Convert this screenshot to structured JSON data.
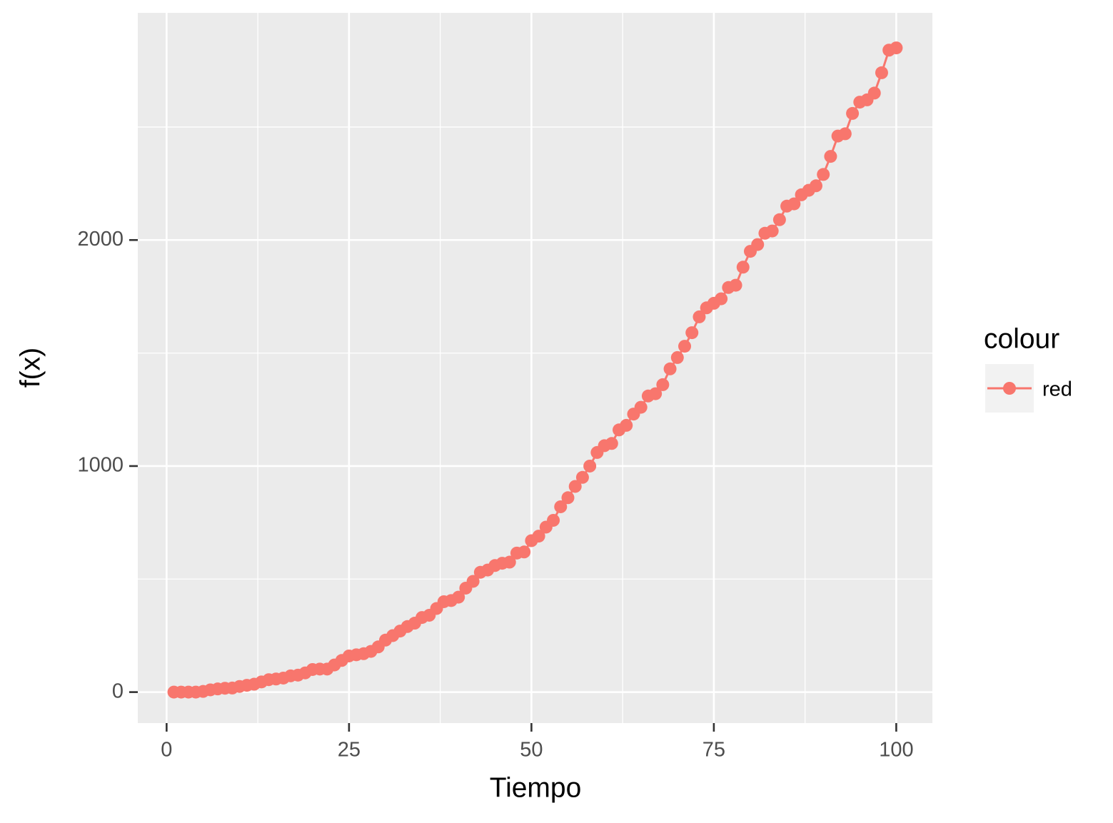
{
  "chart_data": {
    "type": "line",
    "x_label": "Tiempo",
    "y_label": "f(x)",
    "x": [
      1,
      2,
      3,
      4,
      5,
      6,
      7,
      8,
      9,
      10,
      11,
      12,
      13,
      14,
      15,
      16,
      17,
      18,
      19,
      20,
      21,
      22,
      23,
      24,
      25,
      26,
      27,
      28,
      29,
      30,
      31,
      32,
      33,
      34,
      35,
      36,
      37,
      38,
      39,
      40,
      41,
      42,
      43,
      44,
      45,
      46,
      47,
      48,
      49,
      50,
      51,
      52,
      53,
      54,
      55,
      56,
      57,
      58,
      59,
      60,
      61,
      62,
      63,
      64,
      65,
      66,
      67,
      68,
      69,
      70,
      71,
      72,
      73,
      74,
      75,
      76,
      77,
      78,
      79,
      80,
      81,
      82,
      83,
      84,
      85,
      86,
      87,
      88,
      89,
      90,
      91,
      92,
      93,
      94,
      95,
      96,
      97,
      98,
      99,
      100
    ],
    "series": [
      {
        "name": "red",
        "color": "#F8766D",
        "values": [
          0,
          0,
          0,
          0,
          3,
          10,
          14,
          17,
          18,
          25,
          30,
          35,
          45,
          55,
          58,
          62,
          72,
          75,
          85,
          100,
          102,
          102,
          120,
          140,
          160,
          165,
          170,
          180,
          200,
          230,
          250,
          270,
          290,
          305,
          330,
          340,
          370,
          400,
          405,
          420,
          460,
          490,
          530,
          540,
          560,
          570,
          575,
          615,
          620,
          670,
          690,
          730,
          760,
          820,
          860,
          910,
          950,
          1000,
          1060,
          1090,
          1100,
          1160,
          1180,
          1230,
          1260,
          1310,
          1320,
          1360,
          1430,
          1480,
          1530,
          1590,
          1660,
          1700,
          1720,
          1740,
          1790,
          1800,
          1880,
          1950,
          1980,
          2030,
          2040,
          2090,
          2150,
          2160,
          2200,
          2220,
          2240,
          2290,
          2370,
          2460,
          2470,
          2560,
          2610,
          2620,
          2650,
          2740,
          2840,
          2850
        ]
      }
    ],
    "legend_title": "colour",
    "xlim": [
      -3.95,
      104.95
    ],
    "ylim": [
      -137,
      3005
    ],
    "xticks": [
      0,
      25,
      50,
      75,
      100
    ],
    "yticks": [
      0,
      1000,
      2000
    ],
    "x_minor_grid": [
      12.5,
      37.5,
      62.5,
      87.5
    ],
    "y_minor_grid": [
      500,
      1500,
      2500
    ],
    "grid": true
  }
}
